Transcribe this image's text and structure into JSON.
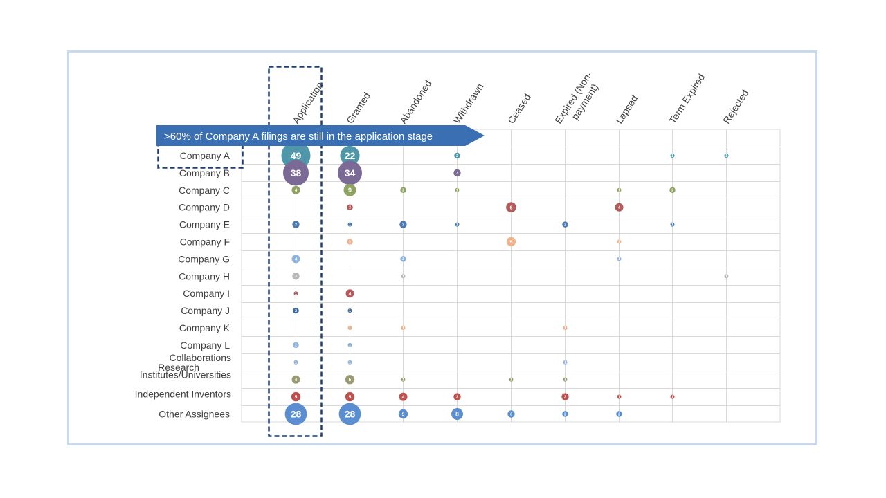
{
  "chart_data": {
    "type": "bubble",
    "columns": [
      "Application",
      "Granted",
      "Abandoned",
      "Withdrawn",
      "Ceased",
      "Expired (Non-payment)",
      "Lapsed",
      "Term Expired",
      "Rejected"
    ],
    "rows": [
      "Company A",
      "Company B",
      "Company C",
      "Company D",
      "Company E",
      "Company F",
      "Company G",
      "Company H",
      "Company I",
      "Company J",
      "Company K",
      "Company L",
      "Research Collaborations",
      "Institutes/Universities",
      "Independent Inventors",
      "Other Assignees"
    ],
    "row_colors": [
      "#4f97a8",
      "#7a6a95",
      "#8ea35f",
      "#b55a5a",
      "#4a7ab3",
      "#f2b28a",
      "#8db3e0",
      "#b8b8b8",
      "#b55a5a",
      "#3c6aa0",
      "#f2b28a",
      "#8db3e0",
      "#8db3e0",
      "#9b9b73",
      "#c0504d",
      "#5a8ed0"
    ],
    "values": [
      {
        "row": "Company A",
        "col": "Application",
        "value": 49
      },
      {
        "row": "Company A",
        "col": "Granted",
        "value": 22
      },
      {
        "row": "Company A",
        "col": "Withdrawn",
        "value": 2
      },
      {
        "row": "Company A",
        "col": "Term Expired",
        "value": 1
      },
      {
        "row": "Company A",
        "col": "Rejected",
        "value": 1
      },
      {
        "row": "Company B",
        "col": "Application",
        "value": 38
      },
      {
        "row": "Company B",
        "col": "Granted",
        "value": 34
      },
      {
        "row": "Company B",
        "col": "Withdrawn",
        "value": 3
      },
      {
        "row": "Company C",
        "col": "Application",
        "value": 4
      },
      {
        "row": "Company C",
        "col": "Granted",
        "value": 9
      },
      {
        "row": "Company C",
        "col": "Abandoned",
        "value": 2
      },
      {
        "row": "Company C",
        "col": "Withdrawn",
        "value": 1
      },
      {
        "row": "Company C",
        "col": "Lapsed",
        "value": 1
      },
      {
        "row": "Company C",
        "col": "Term Expired",
        "value": 2
      },
      {
        "row": "Company D",
        "col": "Granted",
        "value": 2
      },
      {
        "row": "Company D",
        "col": "Ceased",
        "value": 6
      },
      {
        "row": "Company D",
        "col": "Lapsed",
        "value": 4
      },
      {
        "row": "Company E",
        "col": "Application",
        "value": 3
      },
      {
        "row": "Company E",
        "col": "Granted",
        "value": 1
      },
      {
        "row": "Company E",
        "col": "Abandoned",
        "value": 3
      },
      {
        "row": "Company E",
        "col": "Withdrawn",
        "value": 1
      },
      {
        "row": "Company E",
        "col": "Expired (Non-payment)",
        "value": 2
      },
      {
        "row": "Company E",
        "col": "Term Expired",
        "value": 1
      },
      {
        "row": "Company F",
        "col": "Granted",
        "value": 2
      },
      {
        "row": "Company F",
        "col": "Ceased",
        "value": 5
      },
      {
        "row": "Company F",
        "col": "Lapsed",
        "value": 1
      },
      {
        "row": "Company G",
        "col": "Application",
        "value": 4
      },
      {
        "row": "Company G",
        "col": "Abandoned",
        "value": 2
      },
      {
        "row": "Company G",
        "col": "Lapsed",
        "value": 1
      },
      {
        "row": "Company H",
        "col": "Application",
        "value": 3
      },
      {
        "row": "Company H",
        "col": "Abandoned",
        "value": 1
      },
      {
        "row": "Company H",
        "col": "Rejected",
        "value": 1
      },
      {
        "row": "Company I",
        "col": "Application",
        "value": 1
      },
      {
        "row": "Company I",
        "col": "Granted",
        "value": 4
      },
      {
        "row": "Company J",
        "col": "Application",
        "value": 2
      },
      {
        "row": "Company J",
        "col": "Granted",
        "value": 1
      },
      {
        "row": "Company K",
        "col": "Granted",
        "value": 1
      },
      {
        "row": "Company K",
        "col": "Abandoned",
        "value": 1
      },
      {
        "row": "Company K",
        "col": "Expired (Non-payment)",
        "value": 1
      },
      {
        "row": "Company L",
        "col": "Application",
        "value": 2
      },
      {
        "row": "Company L",
        "col": "Granted",
        "value": 1
      },
      {
        "row": "Research Collaborations",
        "col": "Application",
        "value": 1
      },
      {
        "row": "Research Collaborations",
        "col": "Granted",
        "value": 1
      },
      {
        "row": "Research Collaborations",
        "col": "Expired (Non-payment)",
        "value": 1
      },
      {
        "row": "Institutes/Universities",
        "col": "Application",
        "value": 4
      },
      {
        "row": "Institutes/Universities",
        "col": "Granted",
        "value": 5
      },
      {
        "row": "Institutes/Universities",
        "col": "Abandoned",
        "value": 1
      },
      {
        "row": "Institutes/Universities",
        "col": "Ceased",
        "value": 1
      },
      {
        "row": "Institutes/Universities",
        "col": "Expired (Non-payment)",
        "value": 1
      },
      {
        "row": "Independent Inventors",
        "col": "Application",
        "value": 5
      },
      {
        "row": "Independent Inventors",
        "col": "Granted",
        "value": 5
      },
      {
        "row": "Independent Inventors",
        "col": "Abandoned",
        "value": 4
      },
      {
        "row": "Independent Inventors",
        "col": "Withdrawn",
        "value": 3
      },
      {
        "row": "Independent Inventors",
        "col": "Expired (Non-payment)",
        "value": 3
      },
      {
        "row": "Independent Inventors",
        "col": "Lapsed",
        "value": 1
      },
      {
        "row": "Independent Inventors",
        "col": "Term Expired",
        "value": 1
      },
      {
        "row": "Other Assignees",
        "col": "Application",
        "value": 28
      },
      {
        "row": "Other Assignees",
        "col": "Granted",
        "value": 28
      },
      {
        "row": "Other Assignees",
        "col": "Abandoned",
        "value": 5
      },
      {
        "row": "Other Assignees",
        "col": "Withdrawn",
        "value": 8
      },
      {
        "row": "Other Assignees",
        "col": "Ceased",
        "value": 3
      },
      {
        "row": "Other Assignees",
        "col": "Expired (Non-payment)",
        "value": 2
      },
      {
        "row": "Other Assignees",
        "col": "Lapsed",
        "value": 2
      }
    ],
    "grid": true,
    "callout": ">60% of Company A filings are still in the application stage",
    "highlight": {
      "row": "Company A",
      "col": "Application",
      "style": "dashed box"
    }
  },
  "colors": {
    "callout_fill": "#3a6fb4",
    "highlight_border": "#1f3f73",
    "grid": "#d9d9d9",
    "frame": "#c9d9ef"
  }
}
